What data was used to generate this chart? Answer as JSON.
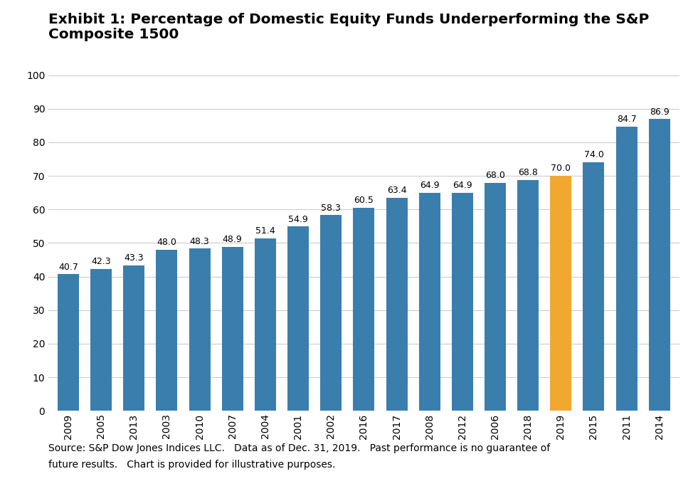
{
  "categories": [
    "2009",
    "2005",
    "2013",
    "2003",
    "2010",
    "2007",
    "2004",
    "2001",
    "2002",
    "2016",
    "2017",
    "2008",
    "2012",
    "2006",
    "2018",
    "2019",
    "2015",
    "2011",
    "2014"
  ],
  "values": [
    40.7,
    42.3,
    43.3,
    48.0,
    48.3,
    48.9,
    51.4,
    54.9,
    58.3,
    60.5,
    63.4,
    64.9,
    64.9,
    68.0,
    68.8,
    70.0,
    74.0,
    84.7,
    86.9
  ],
  "bar_colors": [
    "#3a7ead",
    "#3a7ead",
    "#3a7ead",
    "#3a7ead",
    "#3a7ead",
    "#3a7ead",
    "#3a7ead",
    "#3a7ead",
    "#3a7ead",
    "#3a7ead",
    "#3a7ead",
    "#3a7ead",
    "#3a7ead",
    "#3a7ead",
    "#3a7ead",
    "#f0a830",
    "#3a7ead",
    "#3a7ead",
    "#3a7ead"
  ],
  "title_line1": "Exhibit 1: Percentage of Domestic Equity Funds Underperforming the S&P",
  "title_line2": "Composite 1500",
  "ylim": [
    0,
    100
  ],
  "yticks": [
    0,
    10,
    20,
    30,
    40,
    50,
    60,
    70,
    80,
    90,
    100
  ],
  "background_color": "#ffffff",
  "grid_color": "#cccccc",
  "footnote_line1": "Source: S&P Dow Jones Indices LLC.   Data as of Dec. 31, 2019.   Past performance is no guarantee of",
  "footnote_line2": "future results.   Chart is provided for illustrative purposes.",
  "title_fontsize": 14.5,
  "label_fontsize": 9.0,
  "tick_fontsize": 10,
  "footnote_fontsize": 10
}
